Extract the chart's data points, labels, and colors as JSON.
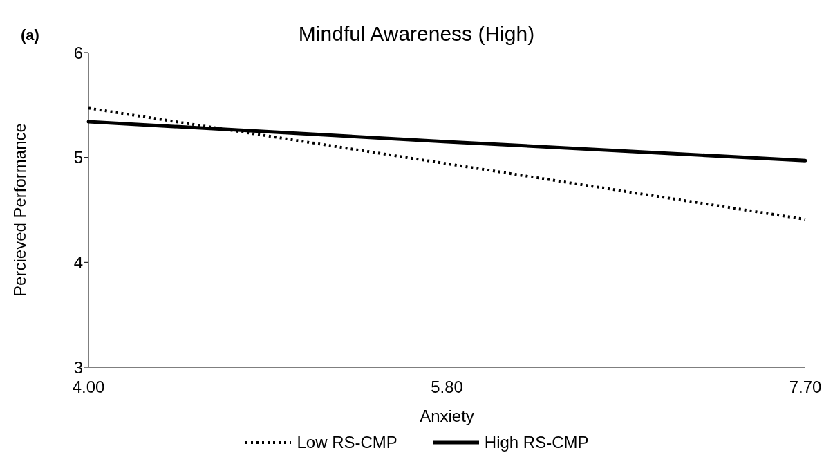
{
  "chart_data": {
    "type": "line",
    "title": "Mindful Awareness (High)",
    "xlabel": "Anxiety",
    "ylabel": "Percieved Performance",
    "annotations": [
      "(a)"
    ],
    "categories": [
      "4.00",
      "5.80",
      "7.70"
    ],
    "series": [
      {
        "name": "Low RS-CMP",
        "color": "#000000",
        "line_style": "dotted",
        "values": [
          5.47,
          4.94,
          4.41
        ]
      },
      {
        "name": "High RS-CMP",
        "color": "#000000",
        "line_style": "solid",
        "values": [
          5.34,
          5.15,
          4.97
        ]
      }
    ],
    "ylim": [
      3,
      6
    ],
    "yticks": [
      3,
      4,
      5,
      6
    ],
    "grid": false,
    "legend": "bottom",
    "marker": "none"
  }
}
